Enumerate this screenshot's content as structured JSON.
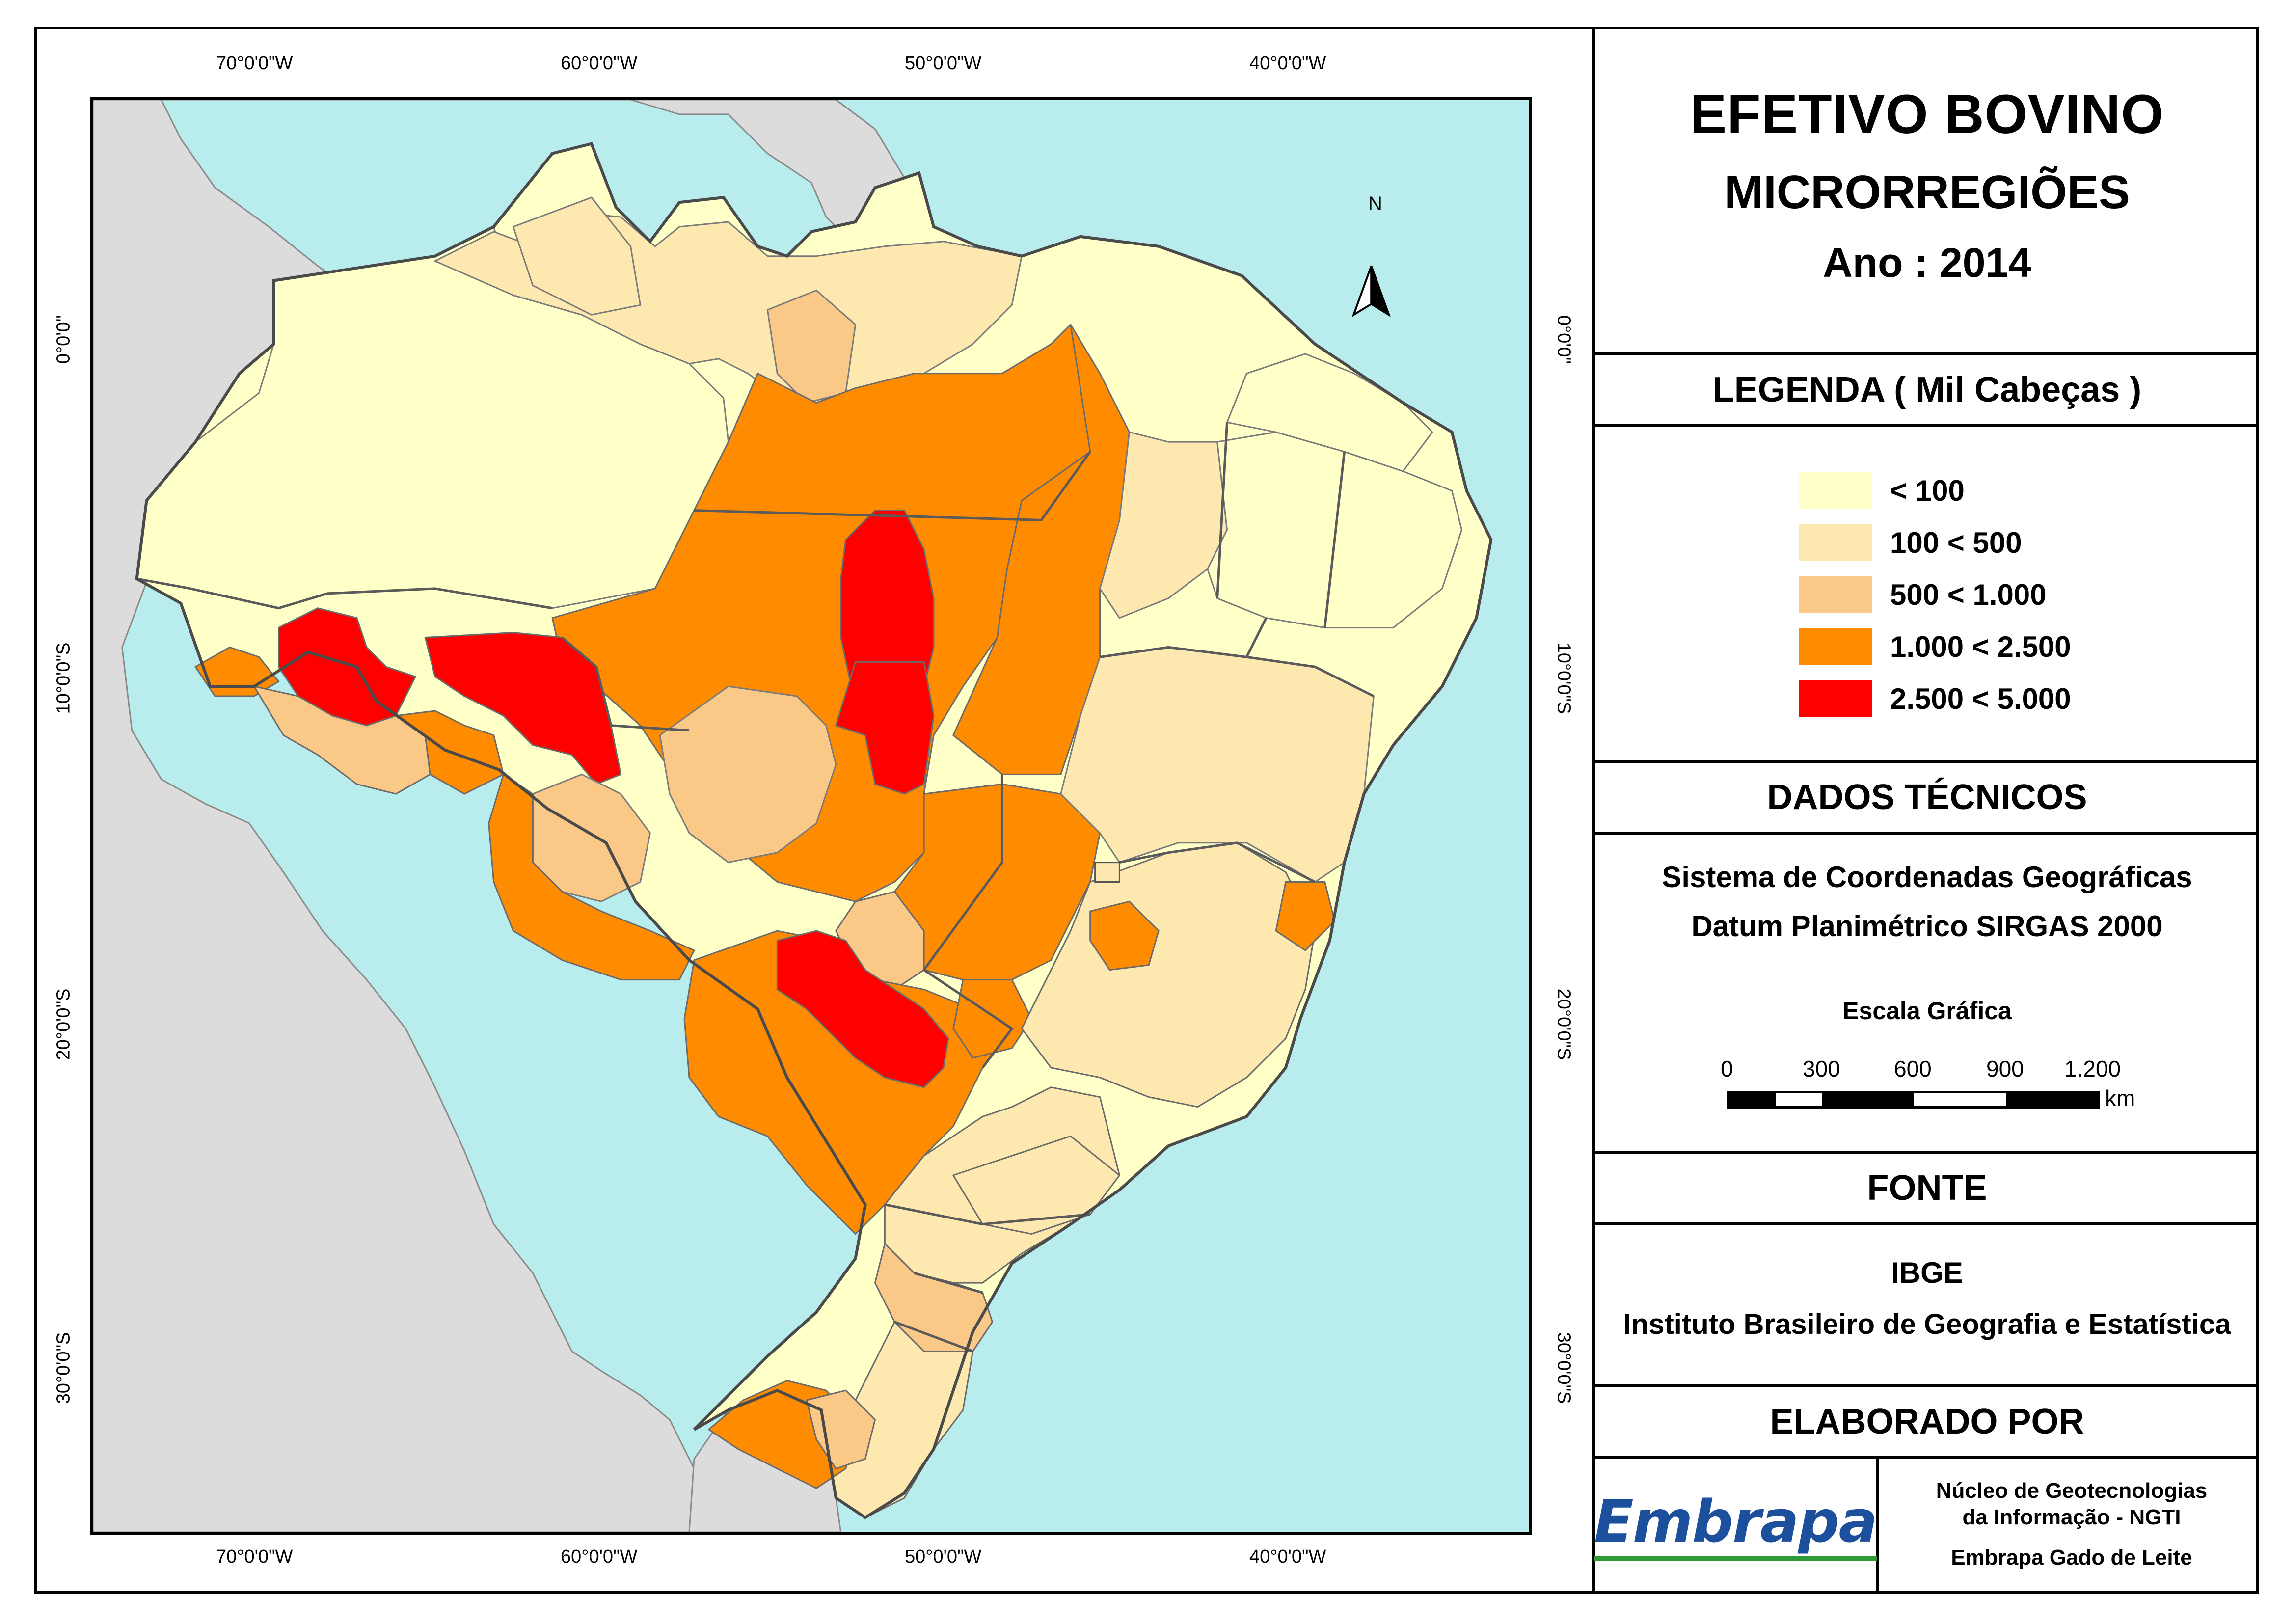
{
  "map": {
    "graticule_top": [
      "70°0'0\"W",
      "60°0'0\"W",
      "50°0'0\"W",
      "40°0'0\"W"
    ],
    "graticule_bottom": [
      "70°0'0\"W",
      "60°0'0\"W",
      "50°0'0\"W",
      "40°0'0\"W"
    ],
    "graticule_left": [
      "0°0'0\"",
      "10°0'0\"S",
      "20°0'0\"S",
      "30°0'0\"S"
    ],
    "graticule_right": [
      "0°0'0\"",
      "10°0'0\"S",
      "20°0'0\"S",
      "30°0'0\"S"
    ],
    "north_arrow_label": "N",
    "colors": {
      "ocean": "#b9ecec",
      "neighbor_countries": "#dcdcdc",
      "class_1": "#ffffc8",
      "class_2": "#fde8b0",
      "class_3": "#fbc987",
      "class_4": "#ff8c00",
      "class_5": "#ff0000"
    }
  },
  "panel": {
    "title": "EFETIVO BOVINO",
    "subtitle": "MICRORREGIÕES",
    "year": "Ano : 2014",
    "legend_header": "LEGENDA ( Mil Cabeças )",
    "legend_items": [
      {
        "label": "< 100",
        "color": "#ffffc8"
      },
      {
        "label": "100 < 500",
        "color": "#fde8b0"
      },
      {
        "label": "500 < 1.000",
        "color": "#fbc987"
      },
      {
        "label": "1.000 < 2.500",
        "color": "#ff8c00"
      },
      {
        "label": "2.500 < 5.000",
        "color": "#ff0000"
      }
    ],
    "tech_header": "DADOS TÉCNICOS",
    "tech_line_1": "Sistema de Coordenadas Geográficas",
    "tech_line_2": "Datum Planimétrico SIRGAS 2000",
    "scale_title": "Escala Gráfica",
    "scale_labels": [
      "0",
      "300",
      "600",
      "900",
      "1.200"
    ],
    "scale_unit": "km",
    "fonte_header": "FONTE",
    "fonte_org": "IBGE",
    "fonte_name": "Instituto Brasileiro de Geografia e Estatística",
    "elaborado_header": "ELABORADO POR",
    "logo_text": "Embrapa",
    "ngti_1": "Núcleo de Geotecnologias",
    "ngti_2": "da Informação - NGTI",
    "ngti_3": "Embrapa Gado de Leite"
  }
}
